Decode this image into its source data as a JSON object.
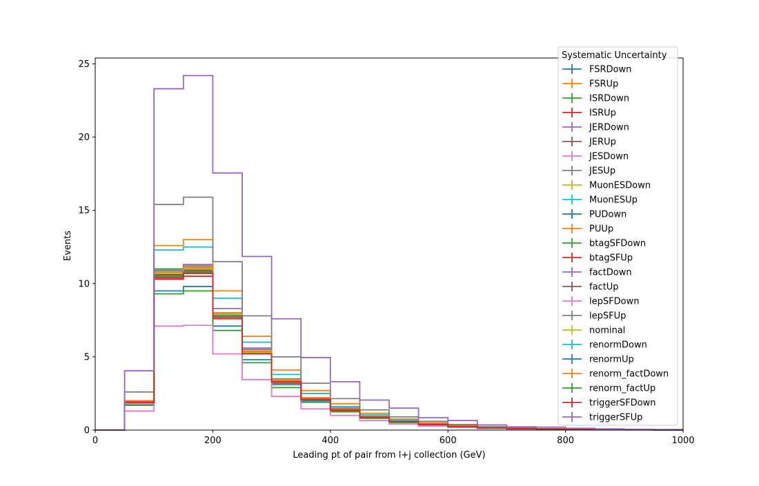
{
  "chart_data": {
    "type": "line",
    "drawstyle": "steps",
    "xlabel": "Leading pt of pair from l+j collection (GeV)",
    "ylabel": "Events",
    "xlim": [
      0,
      1000
    ],
    "ylim": [
      0,
      25.4
    ],
    "x_ticks": [
      0,
      200,
      400,
      600,
      800,
      1000
    ],
    "y_ticks": [
      0,
      5,
      10,
      15,
      20,
      25
    ],
    "grid": false,
    "legend_title": "Systematic Uncertainty",
    "legend_position": "upper-right",
    "bin_edges": [
      0,
      50,
      100,
      150,
      200,
      250,
      300,
      350,
      400,
      450,
      500,
      550,
      600,
      650,
      700,
      750,
      800,
      850,
      900,
      950,
      1000
    ],
    "series": [
      {
        "name": "FSRDown",
        "color": "#1f77b4",
        "values": [
          0,
          1.9,
          10.6,
          10.9,
          7.9,
          5.3,
          3.3,
          2.1,
          1.4,
          0.9,
          0.6,
          0.4,
          0.25,
          0.15,
          0.1,
          0.07,
          0.05,
          0.03,
          0.02,
          0.01
        ]
      },
      {
        "name": "FSRUp",
        "color": "#ff7f0e",
        "values": [
          0,
          1.9,
          10.6,
          11.0,
          8.0,
          5.4,
          3.4,
          2.2,
          1.4,
          0.9,
          0.6,
          0.4,
          0.25,
          0.15,
          0.1,
          0.07,
          0.05,
          0.03,
          0.02,
          0.01
        ]
      },
      {
        "name": "ISRDown",
        "color": "#2ca02c",
        "values": [
          0,
          1.9,
          11.0,
          11.1,
          8.0,
          5.4,
          3.4,
          2.1,
          1.4,
          0.9,
          0.6,
          0.4,
          0.25,
          0.15,
          0.1,
          0.07,
          0.05,
          0.03,
          0.02,
          0.01
        ]
      },
      {
        "name": "ISRUp",
        "color": "#d62728",
        "values": [
          0,
          1.8,
          10.3,
          10.5,
          7.6,
          5.2,
          3.2,
          2.0,
          1.3,
          0.85,
          0.55,
          0.38,
          0.24,
          0.14,
          0.1,
          0.07,
          0.05,
          0.03,
          0.02,
          0.01
        ]
      },
      {
        "name": "JERDown",
        "color": "#9467bd",
        "values": [
          0,
          2.0,
          10.9,
          11.3,
          8.3,
          5.6,
          3.5,
          2.2,
          1.5,
          0.95,
          0.62,
          0.42,
          0.27,
          0.16,
          0.1,
          0.07,
          0.05,
          0.03,
          0.02,
          0.01
        ]
      },
      {
        "name": "JERUp",
        "color": "#8c564b",
        "values": [
          0,
          1.9,
          10.5,
          10.8,
          7.8,
          5.3,
          3.3,
          2.1,
          1.4,
          0.9,
          0.6,
          0.4,
          0.25,
          0.15,
          0.1,
          0.07,
          0.05,
          0.03,
          0.02,
          0.01
        ]
      },
      {
        "name": "JESDown",
        "color": "#e377c2",
        "values": [
          0,
          1.8,
          10.4,
          10.7,
          7.7,
          5.2,
          3.3,
          2.1,
          1.35,
          0.88,
          0.58,
          0.39,
          0.25,
          0.15,
          0.1,
          0.07,
          0.05,
          0.03,
          0.02,
          0.01
        ]
      },
      {
        "name": "JESUp",
        "color": "#7f7f7f",
        "values": [
          0,
          2.0,
          10.8,
          11.2,
          8.0,
          5.5,
          3.5,
          2.2,
          1.45,
          0.92,
          0.6,
          0.41,
          0.26,
          0.15,
          0.1,
          0.07,
          0.05,
          0.03,
          0.02,
          0.01
        ]
      },
      {
        "name": "MuonESDown",
        "color": "#bcbd22",
        "values": [
          0,
          1.9,
          10.7,
          11.0,
          7.9,
          5.3,
          3.4,
          2.1,
          1.4,
          0.9,
          0.6,
          0.4,
          0.25,
          0.15,
          0.1,
          0.07,
          0.05,
          0.03,
          0.02,
          0.01
        ]
      },
      {
        "name": "MuonESUp",
        "color": "#17becf",
        "values": [
          0,
          2.0,
          12.3,
          12.5,
          9.0,
          6.0,
          3.8,
          2.5,
          1.6,
          1.05,
          0.7,
          0.47,
          0.3,
          0.18,
          0.12,
          0.08,
          0.05,
          0.03,
          0.02,
          0.01
        ]
      },
      {
        "name": "PUDown",
        "color": "#1f77b4",
        "values": [
          0,
          1.7,
          9.5,
          9.8,
          7.1,
          4.8,
          3.1,
          2.0,
          1.3,
          0.85,
          0.55,
          0.37,
          0.23,
          0.14,
          0.09,
          0.06,
          0.04,
          0.03,
          0.02,
          0.01
        ]
      },
      {
        "name": "PUUp",
        "color": "#ff7f0e",
        "values": [
          0,
          2.0,
          12.6,
          13.0,
          9.5,
          6.4,
          4.1,
          2.7,
          1.8,
          1.15,
          0.75,
          0.5,
          0.32,
          0.2,
          0.13,
          0.08,
          0.05,
          0.03,
          0.02,
          0.01
        ]
      },
      {
        "name": "btagSFDown",
        "color": "#2ca02c",
        "values": [
          0,
          1.7,
          9.3,
          9.5,
          6.8,
          4.6,
          2.9,
          1.9,
          1.25,
          0.8,
          0.52,
          0.35,
          0.22,
          0.13,
          0.09,
          0.06,
          0.04,
          0.03,
          0.02,
          0.01
        ]
      },
      {
        "name": "btagSFUp",
        "color": "#d62728",
        "values": [
          0,
          1.9,
          10.6,
          10.9,
          7.8,
          5.3,
          3.3,
          2.1,
          1.4,
          0.9,
          0.6,
          0.4,
          0.25,
          0.15,
          0.1,
          0.07,
          0.05,
          0.03,
          0.02,
          0.01
        ]
      },
      {
        "name": "factDown",
        "color": "#9467bd",
        "values": [
          0,
          1.9,
          10.7,
          11.0,
          7.9,
          5.3,
          3.4,
          2.1,
          1.4,
          0.9,
          0.6,
          0.4,
          0.25,
          0.15,
          0.1,
          0.07,
          0.05,
          0.03,
          0.02,
          0.01
        ]
      },
      {
        "name": "factUp",
        "color": "#8c564b",
        "values": [
          0,
          1.9,
          10.6,
          10.9,
          7.8,
          5.3,
          3.3,
          2.1,
          1.4,
          0.9,
          0.6,
          0.4,
          0.25,
          0.15,
          0.1,
          0.07,
          0.05,
          0.03,
          0.02,
          0.01
        ]
      },
      {
        "name": "lepSFDown",
        "color": "#e377c2",
        "values": [
          0,
          1.3,
          7.1,
          7.15,
          5.2,
          3.45,
          2.3,
          1.45,
          1.0,
          0.65,
          0.42,
          0.28,
          0.18,
          0.11,
          0.07,
          0.05,
          0.03,
          0.02,
          0.01,
          0.01
        ]
      },
      {
        "name": "lepSFUp",
        "color": "#7f7f7f",
        "values": [
          0,
          2.6,
          15.4,
          15.9,
          11.5,
          7.8,
          5.0,
          3.2,
          2.15,
          1.38,
          0.9,
          0.6,
          0.38,
          0.23,
          0.15,
          0.1,
          0.06,
          0.04,
          0.03,
          0.02
        ]
      },
      {
        "name": "nominal",
        "color": "#bcbd22",
        "values": [
          0,
          1.9,
          10.7,
          11.0,
          7.9,
          5.3,
          3.4,
          2.1,
          1.4,
          0.9,
          0.6,
          0.4,
          0.25,
          0.15,
          0.1,
          0.07,
          0.05,
          0.03,
          0.02,
          0.01
        ]
      },
      {
        "name": "renormDown",
        "color": "#17becf",
        "values": [
          0,
          1.9,
          10.8,
          11.1,
          8.0,
          5.4,
          3.4,
          2.2,
          1.42,
          0.92,
          0.6,
          0.4,
          0.26,
          0.15,
          0.1,
          0.07,
          0.05,
          0.03,
          0.02,
          0.01
        ]
      },
      {
        "name": "renormUp",
        "color": "#1f77b4",
        "values": [
          0,
          1.9,
          10.5,
          10.8,
          7.8,
          5.2,
          3.3,
          2.1,
          1.38,
          0.88,
          0.58,
          0.39,
          0.25,
          0.15,
          0.1,
          0.07,
          0.05,
          0.03,
          0.02,
          0.01
        ]
      },
      {
        "name": "renorm_factDown",
        "color": "#ff7f0e",
        "values": [
          0,
          1.9,
          10.8,
          11.1,
          8.0,
          5.4,
          3.4,
          2.2,
          1.42,
          0.92,
          0.6,
          0.4,
          0.26,
          0.15,
          0.1,
          0.07,
          0.05,
          0.03,
          0.02,
          0.01
        ]
      },
      {
        "name": "renorm_factUp",
        "color": "#2ca02c",
        "values": [
          0,
          1.9,
          10.5,
          10.8,
          7.8,
          5.2,
          3.3,
          2.1,
          1.38,
          0.88,
          0.58,
          0.39,
          0.25,
          0.15,
          0.1,
          0.07,
          0.05,
          0.03,
          0.02,
          0.01
        ]
      },
      {
        "name": "triggerSFDown",
        "color": "#d62728",
        "values": [
          0,
          1.9,
          10.4,
          10.7,
          7.7,
          5.2,
          3.3,
          2.1,
          1.36,
          0.87,
          0.57,
          0.38,
          0.24,
          0.15,
          0.1,
          0.07,
          0.05,
          0.03,
          0.02,
          0.01
        ]
      },
      {
        "name": "triggerSFUp",
        "color": "#9467bd",
        "values": [
          0,
          4.05,
          23.3,
          24.2,
          17.55,
          11.85,
          7.6,
          4.95,
          3.3,
          2.05,
          1.5,
          0.85,
          0.65,
          0.35,
          0.22,
          0.2,
          0.12,
          0.08,
          0.05,
          0.04
        ]
      }
    ]
  }
}
